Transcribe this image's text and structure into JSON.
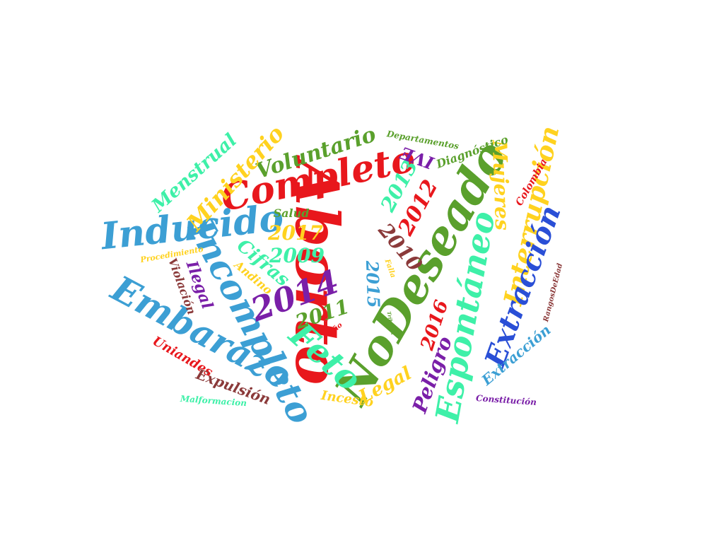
{
  "words": [
    {
      "text": "Aborto",
      "color": "#e8171c"
    },
    {
      "text": "NoDeseado",
      "color": "#5aa02c"
    },
    {
      "text": "Completo",
      "color": "#e8171c"
    },
    {
      "text": "Incompleto",
      "color": "#3c9fd4"
    },
    {
      "text": "Embarazo",
      "color": "#3c9fd4"
    },
    {
      "text": "Inducido",
      "color": "#3c9fd4"
    },
    {
      "text": "Espontáneo",
      "color": "#3ef0a8"
    },
    {
      "text": "Interrupción",
      "color": "#ffd21f"
    },
    {
      "text": "Extracción",
      "color": "#2a4fd6"
    },
    {
      "text": "Feto",
      "color": "#3ef0a8"
    },
    {
      "text": "2014",
      "color": "#7a1fa8"
    },
    {
      "text": "Mujeres",
      "color": "#ffd21f"
    },
    {
      "text": "Voluntario",
      "color": "#5aa02c"
    },
    {
      "text": "Ministerio",
      "color": "#ffd21f"
    },
    {
      "text": "Menstrual",
      "color": "#3ef0a8"
    },
    {
      "text": "2012",
      "color": "#e8171c"
    },
    {
      "text": "2013",
      "color": "#3ef0a8"
    },
    {
      "text": "2010",
      "color": "#8b3a3a"
    },
    {
      "text": "2017",
      "color": "#ffd21f"
    },
    {
      "text": "2009",
      "color": "#3ef0a8"
    },
    {
      "text": "2011",
      "color": "#5aa02c"
    },
    {
      "text": "2015",
      "color": "#3c9fd4"
    },
    {
      "text": "2016",
      "color": "#e8171c"
    },
    {
      "text": "Peligro",
      "color": "#7a1fa8"
    },
    {
      "text": "Legal",
      "color": "#ffd21f"
    },
    {
      "text": "Extracción",
      "color": "#3c9fd4"
    },
    {
      "text": "IVE",
      "color": "#7a1fa8"
    },
    {
      "text": "Diagnóstico",
      "color": "#5aa02c"
    },
    {
      "text": "Departamentos",
      "color": "#5aa02c"
    },
    {
      "text": "Colombia",
      "color": "#e8171c"
    },
    {
      "text": "Salud",
      "color": "#5aa02c"
    },
    {
      "text": "Cifras",
      "color": "#3ef0a8"
    },
    {
      "text": "Andino",
      "color": "#ffd21f"
    },
    {
      "text": "Ilegal",
      "color": "#7a1fa8"
    },
    {
      "text": "Violación",
      "color": "#8b3a3a"
    },
    {
      "text": "Procedimiento",
      "color": "#ffd21f"
    },
    {
      "text": "Uniandes",
      "color": "#e8171c"
    },
    {
      "text": "Expulsión",
      "color": "#8b3a3a"
    },
    {
      "text": "Malformacion",
      "color": "#3ef0a8"
    },
    {
      "text": "Incesto",
      "color": "#ffd21f"
    },
    {
      "text": "Constitución",
      "color": "#7a1fa8"
    },
    {
      "text": "RangosDeEdad",
      "color": "#8b3a3a"
    },
    {
      "text": "Falla",
      "color": "#ffd21f"
    },
    {
      "text": "Año",
      "color": "#e8171c"
    },
    {
      "text": "Tribunal",
      "color": "#5aa02c"
    },
    {
      "text": "Año",
      "color": "#7a1fa8"
    }
  ]
}
